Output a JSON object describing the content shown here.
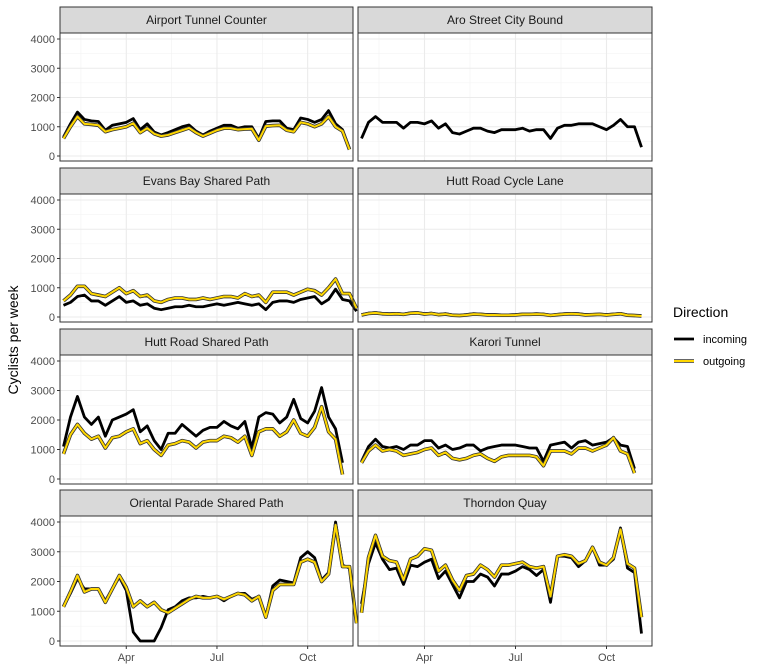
{
  "chart_data": {
    "type": "line",
    "ylabel": "Cyclists per week",
    "xlabel": "",
    "ylim": [
      0,
      4000
    ],
    "y_ticks": [
      "0",
      "1000",
      "2000",
      "3000",
      "4000"
    ],
    "x_ticks": [
      {
        "label": "Apr",
        "week": 9
      },
      {
        "label": "Jul",
        "week": 22
      },
      {
        "label": "Oct",
        "week": 35
      }
    ],
    "x_range_weeks": [
      -0.5,
      41.5
    ],
    "grid": true,
    "legend": {
      "title": "Direction",
      "placement": "right"
    },
    "series_styles": [
      {
        "name": "incoming",
        "color": "#000000"
      },
      {
        "name": "outgoing",
        "color": "#FFD700",
        "outline": "#333333"
      }
    ],
    "panels": [
      {
        "title": "Airport Tunnel Counter",
        "series": [
          {
            "name": "incoming",
            "values": [
              650,
              1100,
              1500,
              1250,
              1200,
              1180,
              880,
              1050,
              1100,
              1150,
              1280,
              900,
              1100,
              820,
              720,
              800,
              900,
              1000,
              1060,
              850,
              720,
              850,
              950,
              1050,
              1050,
              950,
              1000,
              1000,
              600,
              1180,
              1200,
              1200,
              950,
              900,
              1300,
              1250,
              1150,
              1250,
              1550,
              1100,
              900,
              250
            ]
          },
          {
            "name": "outgoing",
            "values": [
              600,
              1000,
              1350,
              1100,
              1080,
              1050,
              830,
              900,
              950,
              1000,
              1120,
              800,
              950,
              760,
              680,
              720,
              800,
              880,
              960,
              800,
              680,
              780,
              880,
              950,
              950,
              900,
              920,
              930,
              540,
              1020,
              1040,
              1050,
              880,
              830,
              1150,
              1100,
              1000,
              1100,
              1350,
              1000,
              850,
              220
            ]
          }
        ]
      },
      {
        "title": "Aro Street City Bound",
        "series": [
          {
            "name": "incoming",
            "values": [
              600,
              1150,
              1350,
              1150,
              1150,
              1150,
              950,
              1150,
              1150,
              1100,
              1200,
              950,
              1100,
              800,
              750,
              850,
              950,
              950,
              850,
              800,
              900,
              900,
              900,
              950,
              850,
              900,
              900,
              600,
              950,
              1050,
              1050,
              1100,
              1100,
              1100,
              1000,
              900,
              1050,
              1250,
              1000,
              1000,
              300
            ]
          }
        ]
      },
      {
        "title": "Evans Bay Shared Path",
        "series": [
          {
            "name": "incoming",
            "values": [
              400,
              500,
              700,
              750,
              550,
              550,
              400,
              550,
              700,
              500,
              550,
              400,
              450,
              300,
              250,
              300,
              350,
              350,
              400,
              350,
              350,
              400,
              450,
              400,
              450,
              500,
              450,
              400,
              450,
              250,
              500,
              550,
              550,
              500,
              600,
              650,
              700,
              450,
              600,
              950,
              600,
              550,
              200
            ]
          },
          {
            "name": "outgoing",
            "values": [
              550,
              750,
              1050,
              1050,
              800,
              750,
              700,
              850,
              1000,
              800,
              900,
              700,
              750,
              550,
              500,
              600,
              650,
              650,
              600,
              600,
              650,
              600,
              650,
              700,
              700,
              650,
              800,
              700,
              750,
              500,
              850,
              850,
              850,
              750,
              850,
              950,
              900,
              750,
              1000,
              1300,
              800,
              800,
              300
            ]
          }
        ]
      },
      {
        "title": "Hutt Road Cycle Lane",
        "series": [
          {
            "name": "incoming",
            "values": [
              80,
              130,
              150,
              120,
              110,
              120,
              100,
              140,
              150,
              110,
              130,
              90,
              110,
              70,
              60,
              80,
              110,
              100,
              80,
              80,
              70,
              70,
              80,
              100,
              100,
              110,
              100,
              60,
              90,
              110,
              120,
              110,
              80,
              90,
              100,
              80,
              100,
              120,
              70,
              60,
              40
            ]
          },
          {
            "name": "outgoing",
            "values": [
              70,
              120,
              140,
              110,
              100,
              110,
              90,
              130,
              140,
              100,
              120,
              80,
              100,
              60,
              50,
              70,
              100,
              90,
              70,
              70,
              60,
              60,
              70,
              90,
              90,
              100,
              90,
              55,
              80,
              100,
              110,
              100,
              70,
              80,
              90,
              70,
              90,
              110,
              60,
              50,
              35
            ]
          }
        ]
      },
      {
        "title": "Hutt Road Shared Path",
        "series": [
          {
            "name": "incoming",
            "values": [
              1100,
              2100,
              2800,
              2100,
              1850,
              2100,
              1450,
              2000,
              2100,
              2200,
              2350,
              1600,
              1800,
              1300,
              1000,
              1550,
              1550,
              1850,
              1650,
              1450,
              1650,
              1750,
              1750,
              1950,
              1800,
              1700,
              1950,
              1050,
              2100,
              2250,
              2200,
              1900,
              2100,
              2700,
              2050,
              1900,
              2300,
              3100,
              2100,
              1700,
              550
            ]
          },
          {
            "name": "outgoing",
            "values": [
              850,
              1500,
              1850,
              1550,
              1350,
              1450,
              1050,
              1400,
              1450,
              1600,
              1700,
              1200,
              1300,
              1000,
              800,
              1150,
              1200,
              1300,
              1250,
              1050,
              1250,
              1300,
              1300,
              1450,
              1400,
              1250,
              1450,
              800,
              1600,
              1700,
              1700,
              1450,
              1600,
              2000,
              1550,
              1450,
              1750,
              2450,
              1600,
              1350,
              150
            ]
          }
        ]
      },
      {
        "title": "Karori Tunnel",
        "series": [
          {
            "name": "incoming",
            "values": [
              600,
              1100,
              1350,
              1100,
              1050,
              1100,
              1000,
              1150,
              1150,
              1300,
              1300,
              1050,
              1150,
              1000,
              1050,
              1150,
              1150,
              950,
              1050,
              1100,
              1150,
              1150,
              1150,
              1100,
              1050,
              1050,
              600,
              1150,
              1200,
              1250,
              1050,
              1250,
              1300,
              1150,
              1200,
              1250,
              1400,
              1150,
              1100,
              350
            ]
          },
          {
            "name": "outgoing",
            "values": [
              550,
              950,
              1150,
              950,
              1000,
              950,
              800,
              850,
              900,
              1000,
              1050,
              800,
              900,
              700,
              650,
              700,
              800,
              850,
              700,
              600,
              750,
              800,
              800,
              800,
              800,
              750,
              450,
              950,
              950,
              950,
              850,
              1050,
              1050,
              950,
              1050,
              1150,
              1400,
              950,
              850,
              200
            ]
          }
        ]
      },
      {
        "title": "Oriental Parade Shared Path",
        "series": [
          {
            "name": "incoming",
            "values": [
              1150,
              1600,
              2100,
              1750,
              1750,
              1750,
              1350,
              1750,
              2150,
              1700,
              300,
              0,
              0,
              0,
              450,
              1050,
              1150,
              1350,
              1450,
              1450,
              1500,
              1450,
              1500,
              1350,
              1500,
              1600,
              1600,
              1400,
              1500,
              800,
              1850,
              2050,
              2000,
              1950,
              2800,
              3000,
              2800,
              2050,
              2300,
              4000,
              2550,
              2450,
              600
            ]
          },
          {
            "name": "outgoing",
            "values": [
              1150,
              1650,
              2200,
              1650,
              1750,
              1750,
              1300,
              1750,
              2200,
              1800,
              1150,
              1350,
              1150,
              1300,
              1050,
              950,
              1100,
              1250,
              1400,
              1500,
              1450,
              1450,
              1500,
              1400,
              1500,
              1600,
              1550,
              1350,
              1500,
              800,
              1700,
              1900,
              1900,
              1900,
              2650,
              2750,
              2650,
              2000,
              2250,
              3900,
              2500,
              2500,
              600
            ]
          }
        ]
      },
      {
        "title": "Thorndon Quay",
        "series": [
          {
            "name": "incoming",
            "values": [
              1250,
              2600,
              3300,
              2750,
              2400,
              2450,
              1900,
              2550,
              2500,
              2650,
              2750,
              2100,
              2350,
              1900,
              1450,
              2000,
              2000,
              2250,
              2150,
              1850,
              2250,
              2250,
              2350,
              2500,
              2400,
              2200,
              2400,
              1300,
              2850,
              2850,
              2800,
              2500,
              2700,
              3150,
              2550,
              2550,
              2750,
              3800,
              2450,
              2300,
              250
            ]
          },
          {
            "name": "outgoing",
            "values": [
              950,
              2800,
              3550,
              2850,
              2700,
              2650,
              2050,
              2750,
              2850,
              3100,
              3050,
              2350,
              2550,
              2050,
              1700,
              2200,
              2250,
              2550,
              2400,
              2150,
              2550,
              2550,
              2600,
              2650,
              2500,
              2450,
              2500,
              1500,
              2850,
              2900,
              2850,
              2600,
              2700,
              3150,
              2650,
              2550,
              2800,
              3750,
              2600,
              2450,
              800
            ]
          }
        ]
      }
    ]
  }
}
